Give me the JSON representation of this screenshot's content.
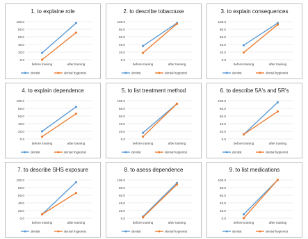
{
  "chart_data": [
    {
      "type": "line",
      "title": "1. to explaine role",
      "categories": [
        "before training",
        "after training"
      ],
      "series": [
        {
          "name": "dentist",
          "values": [
            18.0,
            96.0
          ]
        },
        {
          "name": "dental hygienist",
          "values": [
            0.0,
            71.0
          ]
        }
      ],
      "ylim": [
        0,
        100
      ],
      "yticks": [
        "100.0",
        "80.0",
        "60.0",
        "40.0",
        "20.0",
        "0.0"
      ],
      "legend": "bottom"
    },
    {
      "type": "line",
      "title": "2. to describe tobacouse",
      "categories": [
        "before training",
        "after training"
      ],
      "series": [
        {
          "name": "dentist",
          "values": [
            36.0,
            96.0
          ]
        },
        {
          "name": "dental hygienist",
          "values": [
            18.0,
            94.0
          ]
        }
      ],
      "ylim": [
        0,
        100
      ],
      "yticks": [
        "100.0",
        "80.0",
        "60.0",
        "40.0",
        "20.0",
        "0.0"
      ],
      "legend": "bottom"
    },
    {
      "type": "line",
      "title": "3. to explain consequences",
      "categories": [
        "before training",
        "after training"
      ],
      "series": [
        {
          "name": "dentist",
          "values": [
            38.0,
            96.0
          ]
        },
        {
          "name": "dental hygienist",
          "values": [
            19.0,
            92.0
          ]
        }
      ],
      "ylim": [
        0,
        100
      ],
      "yticks": [
        "100.0",
        "80.0",
        "60.0",
        "40.0",
        "20.0",
        "0.0"
      ],
      "legend": "bottom"
    },
    {
      "type": "line",
      "title": "4. to explain dependence",
      "categories": [
        "before training",
        "after training"
      ],
      "series": [
        {
          "name": "dentist",
          "values": [
            20.0,
            84.0
          ]
        },
        {
          "name": "dental hygienist",
          "values": [
            6.0,
            66.0
          ]
        }
      ],
      "ylim": [
        0,
        100
      ],
      "yticks": [
        "100.0",
        "80.0",
        "60.0",
        "40.0",
        "20.0",
        "0.0"
      ],
      "legend": "bottom"
    },
    {
      "type": "line",
      "title": "5. to list treatment method",
      "categories": [
        "before training",
        "after training"
      ],
      "series": [
        {
          "name": "dentist",
          "values": [
            16.0,
            92.0
          ]
        },
        {
          "name": "dental hygienist",
          "values": [
            6.0,
            92.0
          ]
        }
      ],
      "ylim": [
        0,
        100
      ],
      "yticks": [
        "100.0",
        "80.0",
        "60.0",
        "40.0",
        "20.0",
        "0.0"
      ],
      "legend": "bottom"
    },
    {
      "type": "line",
      "title": "6. to describe 5A's and 5R's",
      "categories": [
        "before training",
        "after training"
      ],
      "series": [
        {
          "name": "dentist",
          "values": [
            12.0,
            96.0
          ]
        },
        {
          "name": "dental hygienist",
          "values": [
            12.0,
            72.0
          ]
        }
      ],
      "ylim": [
        0,
        100
      ],
      "yticks": [
        "100.0",
        "80.0",
        "60.0",
        "40.0",
        "20.0",
        "0.0"
      ],
      "legend": "bottom"
    },
    {
      "type": "line",
      "title": "7. to describe SHS exposure",
      "categories": [
        "before training",
        "after training"
      ],
      "series": [
        {
          "name": "dentist",
          "values": [
            10.0,
            94.0
          ]
        },
        {
          "name": "dental hygienist",
          "values": [
            10.0,
            66.0
          ]
        }
      ],
      "ylim": [
        0,
        100
      ],
      "yticks": [
        "100.0",
        "80.0",
        "60.0",
        "40.0",
        "20.0",
        "0.0"
      ],
      "legend": "bottom"
    },
    {
      "type": "line",
      "title": "8. to asess dependence",
      "categories": [
        "before training",
        "after training"
      ],
      "series": [
        {
          "name": "dentist",
          "values": [
            4.0,
            92.0
          ]
        },
        {
          "name": "dental hygienist",
          "values": [
            2.0,
            88.0
          ]
        }
      ],
      "ylim": [
        0,
        100
      ],
      "yticks": [
        "100.0",
        "80.0",
        "60.0",
        "40.0",
        "20.0",
        "0.0"
      ],
      "legend": "bottom"
    },
    {
      "type": "line",
      "title": "9. to list medications",
      "categories": [
        "before training",
        "after training"
      ],
      "series": [
        {
          "name": "dentist",
          "values": [
            10.0,
            100.0
          ]
        },
        {
          "name": "dental hygienist",
          "values": [
            0.0,
            100.0
          ]
        }
      ],
      "ylim": [
        0,
        100
      ],
      "yticks": [
        "100.0",
        "80.0",
        "60.0",
        "40.0",
        "20.0",
        "0.0"
      ],
      "legend": "bottom"
    }
  ],
  "colors": {
    "dentist": "#5b9bd5",
    "dental hygienist": "#ed7d31",
    "gridline": "#d9d9d9",
    "panel_border": "#bdbdbd",
    "text": "#404040",
    "title_text": "#1a1a1a"
  }
}
